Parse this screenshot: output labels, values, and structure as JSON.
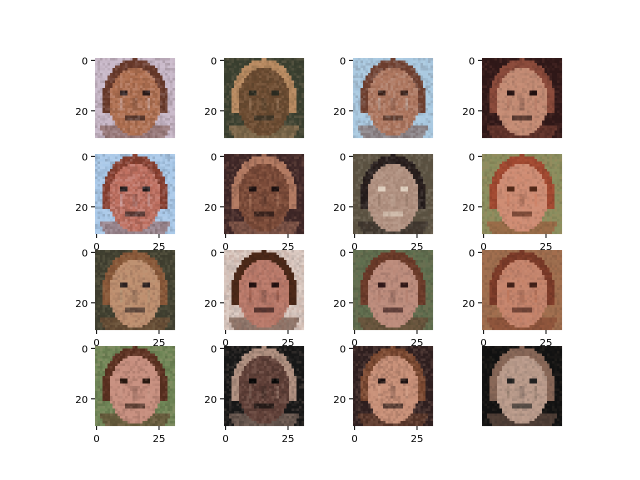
{
  "figure": {
    "grid": {
      "rows": 4,
      "cols": 4
    },
    "axis_ticks": {
      "x": [
        "0",
        "25"
      ],
      "y": [
        "0",
        "20"
      ],
      "x_alt": [
        "0",
        "25"
      ]
    },
    "panels": [
      {
        "id": 1,
        "palette": [
          "#c8b8c8",
          "#6a3a2a",
          "#b07050",
          "#2a1a18",
          "#e8e0f0"
        ],
        "show_y": true,
        "show_x": false
      },
      {
        "id": 2,
        "palette": [
          "#3a4030",
          "#b88a60",
          "#6a4a30",
          "#2a2a20",
          "#d8b090"
        ],
        "show_y": true,
        "show_x": false
      },
      {
        "id": 3,
        "palette": [
          "#a8c8e0",
          "#704030",
          "#b07860",
          "#3a2018",
          "#d8e8f0"
        ],
        "show_y": true,
        "show_x": false
      },
      {
        "id": 4,
        "palette": [
          "#301818",
          "#8a4a3a",
          "#c89078",
          "#201010",
          "#a06050"
        ],
        "show_y": true,
        "show_x": false
      },
      {
        "id": 5,
        "palette": [
          "#a8c8e8",
          "#8a4030",
          "#c07060",
          "#201818",
          "#e0e8f8"
        ],
        "show_y": true,
        "show_x": true
      },
      {
        "id": 6,
        "palette": [
          "#402828",
          "#b07860",
          "#7a4a38",
          "#1a1010",
          "#d8a080"
        ],
        "show_y": true,
        "show_x": true
      },
      {
        "id": 7,
        "palette": [
          "#585040",
          "#201818",
          "#b09080",
          "#e0d0c0",
          "#705848"
        ],
        "show_y": true,
        "show_x": true
      },
      {
        "id": 8,
        "palette": [
          "#8a9060",
          "#a04830",
          "#d09078",
          "#502818",
          "#c87050"
        ],
        "show_y": true,
        "show_x": true
      },
      {
        "id": 9,
        "palette": [
          "#404030",
          "#8a5838",
          "#c09070",
          "#2a2020",
          "#b0a080"
        ],
        "show_y": true,
        "show_x": true
      },
      {
        "id": 10,
        "palette": [
          "#e0d0c8",
          "#4a2818",
          "#c08070",
          "#201010",
          "#6a3020"
        ],
        "show_y": true,
        "show_x": true
      },
      {
        "id": 11,
        "palette": [
          "#607050",
          "#6a3a28",
          "#c09080",
          "#301818",
          "#a06858"
        ],
        "show_y": true,
        "show_x": true
      },
      {
        "id": 12,
        "palette": [
          "#a07050",
          "#7a3a28",
          "#c88870",
          "#402018",
          "#b06040"
        ],
        "show_y": true,
        "show_x": true
      },
      {
        "id": 13,
        "palette": [
          "#708858",
          "#5a3020",
          "#c89080",
          "#281810",
          "#d0a090"
        ],
        "show_y": true,
        "show_x": true
      },
      {
        "id": 14,
        "palette": [
          "#181818",
          "#b09080",
          "#604038",
          "#080808",
          "#d0b0a0"
        ],
        "show_y": true,
        "show_x": true
      },
      {
        "id": 15,
        "palette": [
          "#302020",
          "#7a4830",
          "#c89078",
          "#1a1010",
          "#e0b098"
        ],
        "show_y": true,
        "show_x": true
      },
      {
        "id": 16,
        "palette": [
          "#101010",
          "#8a6858",
          "#c0a090",
          "#202020",
          "#706050"
        ],
        "show_y": false,
        "show_x": false
      }
    ]
  }
}
